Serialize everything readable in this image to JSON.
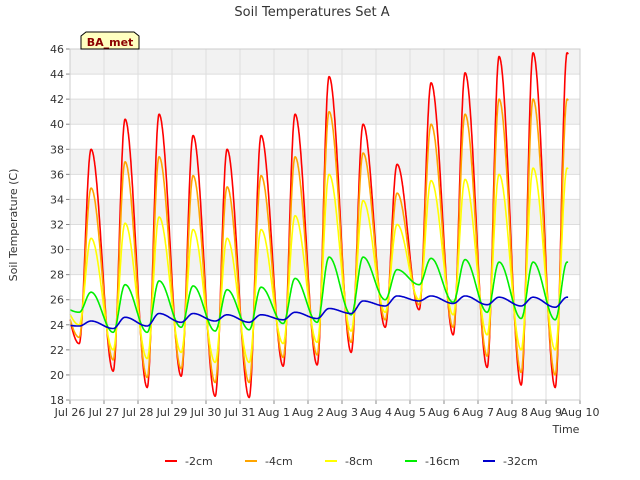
{
  "chart_data": {
    "type": "line",
    "title": "Soil Temperatures Set A",
    "xlabel": "Time",
    "ylabel": "Soil Temperature (C)",
    "badge": "BA_met",
    "ylim": [
      18,
      46
    ],
    "y_ticks": [
      "18",
      "20",
      "22",
      "24",
      "26",
      "28",
      "30",
      "32",
      "34",
      "36",
      "38",
      "40",
      "42",
      "44",
      "46"
    ],
    "x_range_days": [
      0,
      15
    ],
    "x_ticks": [
      "Jul 26",
      "Jul 27",
      "Jul 28",
      "Jul 29",
      "Jul 30",
      "Jul 31",
      "Aug 1",
      "Aug 2",
      "Aug 3",
      "Aug 4",
      "Aug 5",
      "Aug 6",
      "Aug 7",
      "Aug 8",
      "Aug 9",
      "Aug 10"
    ],
    "grid": true,
    "legend_position": "bottom",
    "series": [
      {
        "name": "-2cm",
        "color": "#ff0000",
        "day_min": [
          22.5,
          20.3,
          19.0,
          19.9,
          18.3,
          18.2,
          20.7,
          20.8,
          21.8,
          23.8,
          25.2,
          23.2,
          20.6,
          19.2,
          19.0,
          22.2
        ],
        "day_max": [
          38.0,
          40.4,
          40.8,
          39.1,
          38.0,
          39.1,
          40.8,
          43.8,
          40.0,
          36.8,
          43.3,
          44.1,
          45.4,
          45.7
        ]
      },
      {
        "name": "-4cm",
        "color": "#ffa500",
        "day_min": [
          23.0,
          21.2,
          19.8,
          20.5,
          19.4,
          19.4,
          21.4,
          21.6,
          22.6,
          24.4,
          25.6,
          23.8,
          21.5,
          20.2,
          20.0,
          23.0
        ],
        "day_max": [
          34.9,
          37.0,
          37.4,
          35.9,
          35.0,
          35.9,
          37.4,
          41.0,
          37.7,
          34.5,
          40.0,
          40.8,
          42.0,
          42.0
        ]
      },
      {
        "name": "-8cm",
        "color": "#ffff00",
        "day_min": [
          24.0,
          22.0,
          21.3,
          21.8,
          21.0,
          21.0,
          22.5,
          22.6,
          23.5,
          25.0,
          26.0,
          24.8,
          23.2,
          22.0,
          22.0,
          24.0
        ],
        "day_max": [
          30.9,
          32.1,
          32.6,
          31.6,
          30.9,
          31.6,
          32.7,
          36.0,
          33.9,
          32.0,
          35.5,
          35.6,
          36.0,
          36.5
        ]
      },
      {
        "name": "-16cm",
        "color": "#00ee00",
        "day_min": [
          25.0,
          23.4,
          23.4,
          23.8,
          23.5,
          23.6,
          24.1,
          24.2,
          24.8,
          26.0,
          27.2,
          25.8,
          25.0,
          24.5,
          24.4,
          27.3
        ],
        "day_max": [
          26.6,
          27.2,
          27.5,
          27.1,
          26.8,
          27.0,
          27.7,
          29.4,
          29.4,
          28.4,
          29.3,
          29.2,
          29.0,
          29.0
        ]
      },
      {
        "name": "-32cm",
        "color": "#0000cc",
        "day_min": [
          23.9,
          23.7,
          23.9,
          24.2,
          24.3,
          24.2,
          24.4,
          24.5,
          24.9,
          25.5,
          25.9,
          25.7,
          25.6,
          25.5,
          25.4,
          25.9
        ],
        "day_max": [
          24.3,
          24.6,
          24.9,
          24.9,
          24.8,
          24.8,
          25.0,
          25.3,
          25.9,
          26.3,
          26.3,
          26.3,
          26.2,
          26.2
        ]
      }
    ]
  }
}
